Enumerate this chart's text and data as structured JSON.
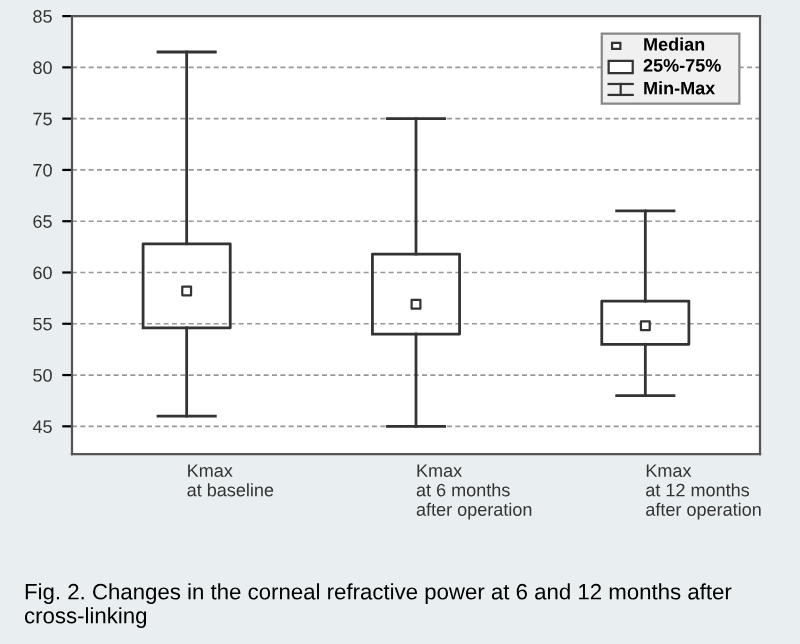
{
  "chart_data": {
    "type": "box",
    "categories": [
      "Kmax\nat baseline",
      "Kmax\nat 6 months\nafter operation",
      "Kmax\nat 12 months\nafter operation"
    ],
    "boxes": [
      {
        "low": 46,
        "q1": 54.6,
        "median": 58.2,
        "q3": 62.8,
        "high": 81.5
      },
      {
        "low": 45,
        "q1": 54,
        "median": 56.9,
        "q3": 61.8,
        "high": 75
      },
      {
        "low": 48,
        "q1": 53,
        "median": 54.8,
        "q3": 57.2,
        "high": 66
      }
    ],
    "ylim": [
      42.3,
      85
    ],
    "yticks": [
      45,
      50,
      55,
      60,
      65,
      70,
      75,
      80,
      85
    ],
    "grid": "y",
    "annotations": [
      "Median",
      "25%-75%",
      "Min-Max",
      "Fig. 2. Changes in the corneal refractive power at 6 and 12 months after cross-linking"
    ]
  }
}
